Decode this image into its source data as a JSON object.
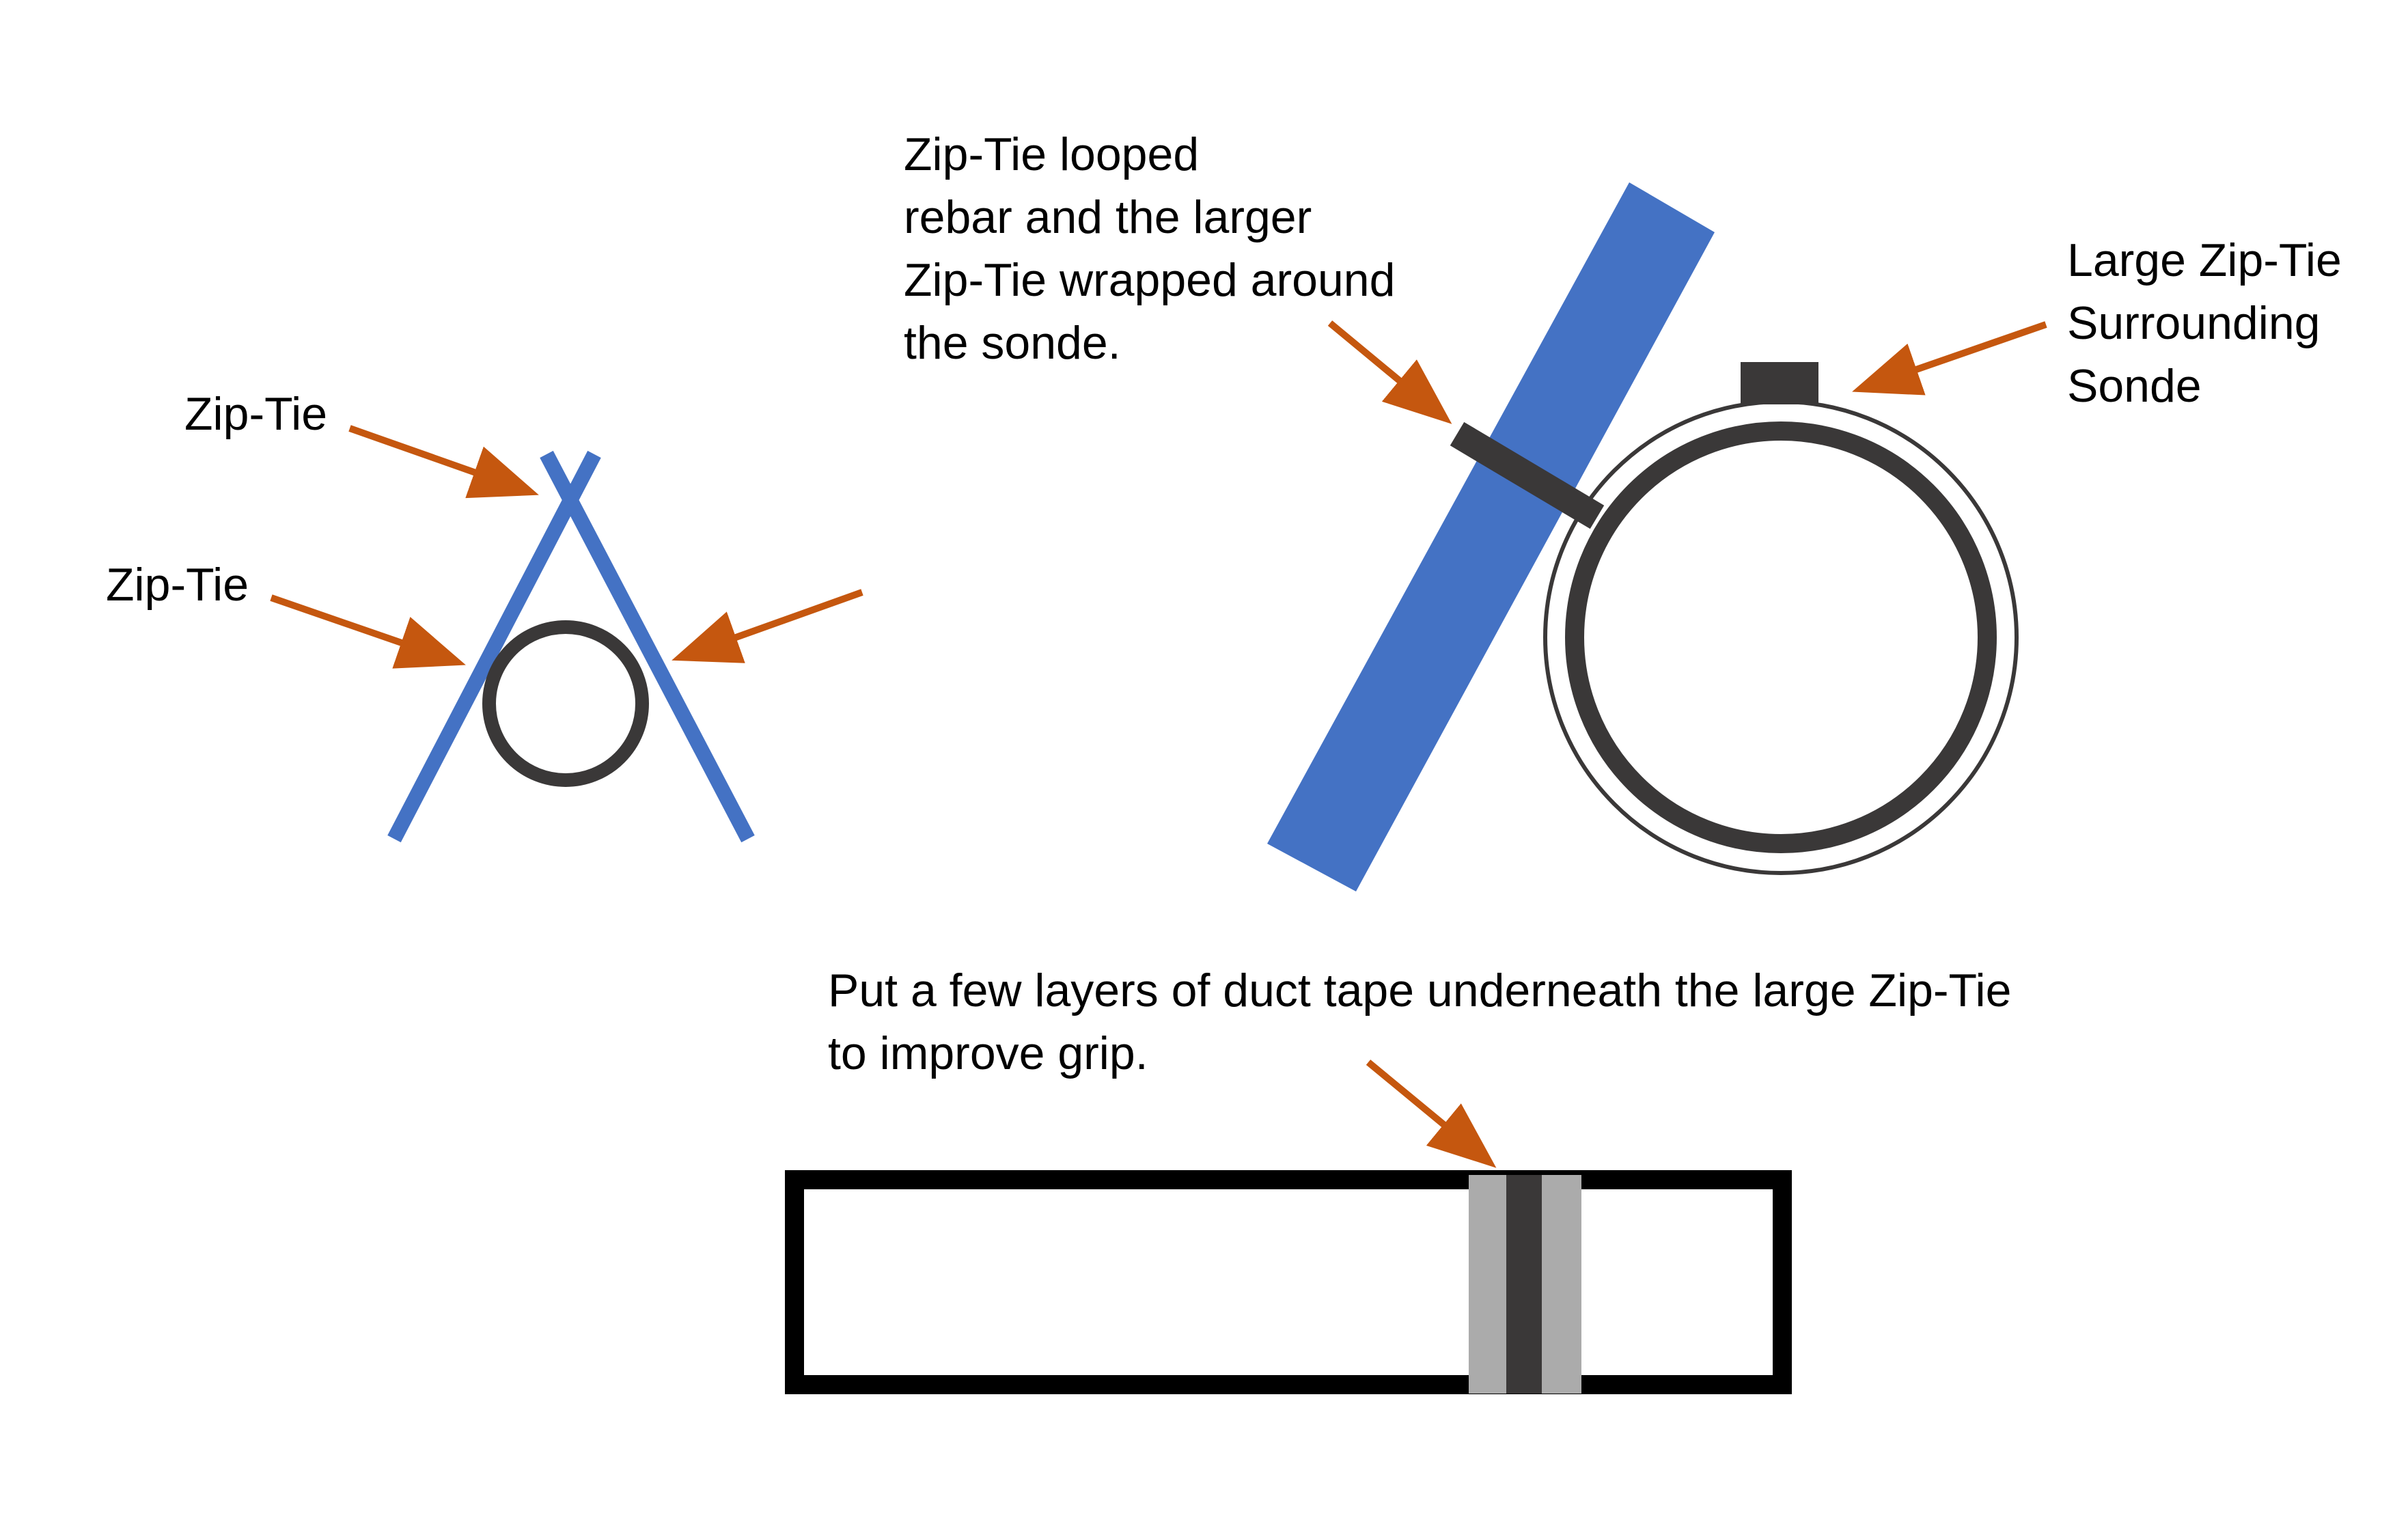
{
  "colors": {
    "rebar_blue": "#4472C4",
    "arrow_orange": "#C5570F",
    "dark": "#3A3838",
    "black": "#000000",
    "tape_gray": "#ABABAB",
    "background": "#FFFFFF"
  },
  "labels": {
    "zip_tie_top": "Zip-Tie",
    "zip_tie_left": "Zip-Tie",
    "looped_rebar": [
      "Zip-Tie looped",
      "rebar and the larger",
      "Zip-Tie wrapped around",
      "the sonde."
    ],
    "large_zip_tie": [
      "Large Zip-Tie",
      "Surrounding",
      "Sonde"
    ],
    "duct_tape": [
      "Put a few layers of duct tape underneath the large Zip-Tie",
      "to improve grip."
    ]
  }
}
